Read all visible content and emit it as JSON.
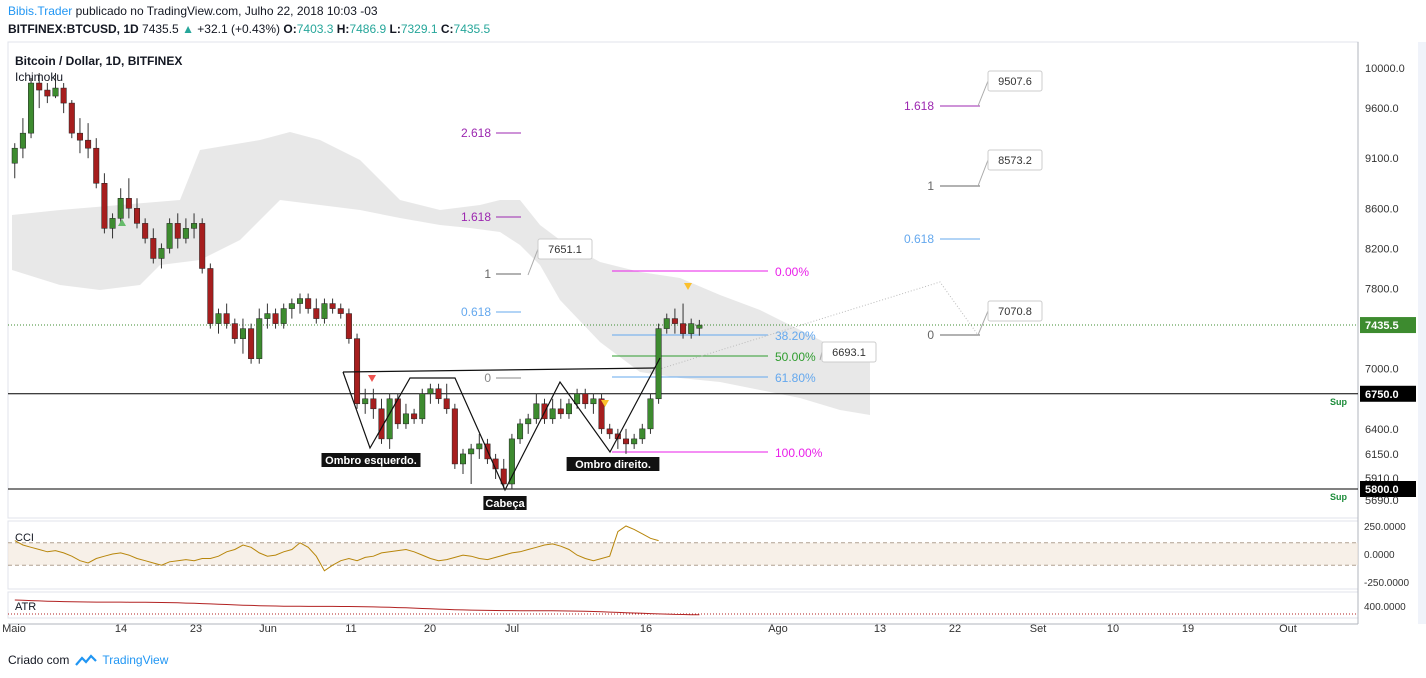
{
  "header": {
    "author": "Bibis.Trader",
    "published_text": "publicado no TradingView.com, Julho 22, 2018 10:03 -03",
    "symbol": "BITFINEX:BTCUSD, 1D",
    "last": "7435.5",
    "change": "+32.1 (+0.43%)",
    "open_label": "O:",
    "open": "7403.3",
    "high_label": "H:",
    "high": "7486.9",
    "low_label": "L:",
    "low": "7329.1",
    "close_label": "C:",
    "close": "7435.5"
  },
  "chart_data": {
    "type": "candlestick",
    "title": "Bitcoin / Dollar, 1D, BITFINEX",
    "indicator_label": "Ichimoku",
    "x_axis_labels": [
      "Maio",
      "14",
      "23",
      "Jun",
      "11",
      "20",
      "Jul",
      "16",
      "Ago",
      "13",
      "22",
      "Set",
      "10",
      "19",
      "Out"
    ],
    "y_axis_labels": [
      "10000.0",
      "9600.0",
      "9100.0",
      "8600.0",
      "8200.0",
      "7800.0",
      "7435.5",
      "7000.0",
      "6750.0",
      "6400.0",
      "6150.0",
      "5910.0",
      "5800.0",
      "5690.0"
    ],
    "current_price": 7435.5,
    "horizontal_lines": [
      {
        "price": 6750.0,
        "label": "Sup"
      },
      {
        "price": 5800.0,
        "label": "Sup"
      }
    ],
    "pattern_labels": [
      "Ombro esquerdo.",
      "Cabeça",
      "Ombro direito."
    ],
    "fib_extension_1": {
      "levels": [
        "0",
        "0.618",
        "1",
        "1.618",
        "2.618"
      ],
      "price_note": "7651.1"
    },
    "fib_retracement": {
      "levels": [
        "0.00%",
        "38.20%",
        "50.00%",
        "61.80%",
        "100.00%"
      ]
    },
    "fib_extension_2": {
      "levels": [
        "0",
        "0.618",
        "1",
        "1.618"
      ],
      "price_notes": [
        "7070.8",
        "8573.2",
        "9507.6"
      ]
    },
    "price_note_neckline": "6693.1",
    "sub_panels": [
      {
        "name": "CCI",
        "axis_labels": [
          "250.0000",
          "0.0000",
          "-250.0000"
        ]
      },
      {
        "name": "ATR",
        "axis_labels": [
          "400.0000"
        ]
      }
    ],
    "candles": [
      [
        9050,
        9250,
        8900,
        9200
      ],
      [
        9200,
        9500,
        9100,
        9350
      ],
      [
        9350,
        9900,
        9300,
        9850
      ],
      [
        9850,
        9950,
        9600,
        9780
      ],
      [
        9780,
        9850,
        9650,
        9720
      ],
      [
        9720,
        9950,
        9700,
        9800
      ],
      [
        9800,
        9850,
        9550,
        9650
      ],
      [
        9650,
        9680,
        9300,
        9350
      ],
      [
        9350,
        9500,
        9150,
        9280
      ],
      [
        9280,
        9450,
        9100,
        9200
      ],
      [
        9200,
        9300,
        8800,
        8850
      ],
      [
        8850,
        8950,
        8350,
        8400
      ],
      [
        8400,
        8550,
        8300,
        8500
      ],
      [
        8500,
        8800,
        8450,
        8700
      ],
      [
        8700,
        8900,
        8500,
        8600
      ],
      [
        8600,
        8700,
        8400,
        8450
      ],
      [
        8450,
        8500,
        8250,
        8300
      ],
      [
        8300,
        8400,
        8050,
        8100
      ],
      [
        8100,
        8250,
        8000,
        8200
      ],
      [
        8200,
        8500,
        8150,
        8450
      ],
      [
        8450,
        8550,
        8200,
        8300
      ],
      [
        8300,
        8500,
        8250,
        8400
      ],
      [
        8400,
        8550,
        8300,
        8450
      ],
      [
        8450,
        8500,
        7950,
        8000
      ],
      [
        8000,
        8050,
        7400,
        7450
      ],
      [
        7450,
        7600,
        7350,
        7550
      ],
      [
        7550,
        7650,
        7400,
        7450
      ],
      [
        7450,
        7500,
        7250,
        7300
      ],
      [
        7300,
        7500,
        7150,
        7400
      ],
      [
        7400,
        7450,
        7050,
        7100
      ],
      [
        7100,
        7600,
        7050,
        7500
      ],
      [
        7500,
        7650,
        7400,
        7550
      ],
      [
        7550,
        7600,
        7400,
        7450
      ],
      [
        7450,
        7650,
        7400,
        7600
      ],
      [
        7600,
        7700,
        7500,
        7650
      ],
      [
        7650,
        7750,
        7550,
        7700
      ],
      [
        7700,
        7750,
        7550,
        7600
      ],
      [
        7600,
        7700,
        7450,
        7500
      ],
      [
        7500,
        7700,
        7450,
        7650
      ],
      [
        7650,
        7700,
        7550,
        7600
      ],
      [
        7600,
        7650,
        7500,
        7550
      ],
      [
        7550,
        7600,
        7250,
        7300
      ],
      [
        7300,
        7350,
        6600,
        6650
      ],
      [
        6650,
        6800,
        6550,
        6700
      ],
      [
        6700,
        6800,
        6500,
        6600
      ],
      [
        6600,
        6700,
        6250,
        6300
      ],
      [
        6300,
        6750,
        6200,
        6700
      ],
      [
        6700,
        6750,
        6400,
        6450
      ],
      [
        6450,
        6650,
        6400,
        6550
      ],
      [
        6550,
        6600,
        6450,
        6500
      ],
      [
        6500,
        6800,
        6450,
        6750
      ],
      [
        6750,
        6850,
        6650,
        6800
      ],
      [
        6800,
        6850,
        6650,
        6700
      ],
      [
        6700,
        6850,
        6550,
        6600
      ],
      [
        6600,
        6650,
        6000,
        6050
      ],
      [
        6050,
        6200,
        5950,
        6150
      ],
      [
        6150,
        6250,
        5850,
        6200
      ],
      [
        6200,
        6350,
        6100,
        6250
      ],
      [
        6250,
        6300,
        6050,
        6100
      ],
      [
        6100,
        6150,
        5900,
        6000
      ],
      [
        6000,
        6100,
        5800,
        5850
      ],
      [
        5850,
        6350,
        5800,
        6300
      ],
      [
        6300,
        6500,
        6250,
        6450
      ],
      [
        6450,
        6550,
        6350,
        6500
      ],
      [
        6500,
        6750,
        6450,
        6650
      ],
      [
        6650,
        6700,
        6450,
        6500
      ],
      [
        6500,
        6700,
        6450,
        6600
      ],
      [
        6600,
        6700,
        6500,
        6550
      ],
      [
        6550,
        6700,
        6500,
        6650
      ],
      [
        6650,
        6800,
        6600,
        6750
      ],
      [
        6750,
        6800,
        6600,
        6650
      ],
      [
        6650,
        6750,
        6550,
        6700
      ],
      [
        6700,
        6750,
        6350,
        6400
      ],
      [
        6400,
        6450,
        6300,
        6350
      ],
      [
        6350,
        6400,
        6200,
        6300
      ],
      [
        6300,
        6400,
        6150,
        6250
      ],
      [
        6250,
        6350,
        6200,
        6300
      ],
      [
        6300,
        6450,
        6250,
        6400
      ],
      [
        6400,
        6750,
        6350,
        6700
      ],
      [
        6700,
        7450,
        6650,
        7400
      ],
      [
        7400,
        7550,
        7350,
        7500
      ],
      [
        7500,
        7600,
        7350,
        7450
      ],
      [
        7450,
        7650,
        7300,
        7350
      ],
      [
        7350,
        7500,
        7300,
        7450
      ],
      [
        7403.3,
        7486.9,
        7329.1,
        7435.5
      ]
    ],
    "cci": [
      120,
      80,
      60,
      40,
      20,
      30,
      10,
      -20,
      -60,
      -80,
      -40,
      -20,
      0,
      10,
      -10,
      -40,
      -60,
      -80,
      -100,
      -70,
      -60,
      -50,
      -60,
      -40,
      -40,
      -20,
      20,
      40,
      80,
      60,
      10,
      -20,
      -10,
      20,
      40,
      100,
      60,
      -20,
      -150,
      -100,
      -60,
      -40,
      -60,
      -30,
      -20,
      10,
      20,
      30,
      40,
      20,
      -10,
      -40,
      -60,
      -50,
      -30,
      -10,
      -20,
      -40,
      -50,
      -30,
      -10,
      10,
      20,
      40,
      60,
      80,
      90,
      70,
      40,
      -10,
      -40,
      -60,
      -40,
      -20,
      200,
      250,
      220,
      180,
      140,
      120
    ]
  },
  "colors": {
    "up": "#3d8b2f",
    "down": "#a61e1e",
    "cloud": "#d6d6d6",
    "fib_pink": "#e91ee9",
    "fib_blue": "#64a8ee",
    "fib_green": "#2e9c2e",
    "ext_purple": "#9c27b0",
    "support": "#1c8c3a"
  },
  "footer": {
    "created_with": "Criado com",
    "brand": "TradingView"
  }
}
